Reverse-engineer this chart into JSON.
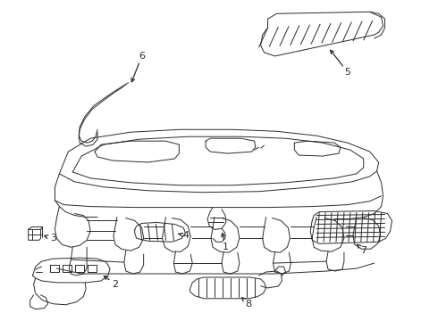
{
  "background_color": "#ffffff",
  "line_color": "#2a2a2a",
  "line_width": 0.7,
  "callout_font_size": 8,
  "figsize": [
    4.9,
    3.6
  ],
  "dpi": 100,
  "xlim": [
    0,
    490
  ],
  "ylim": [
    0,
    360
  ]
}
